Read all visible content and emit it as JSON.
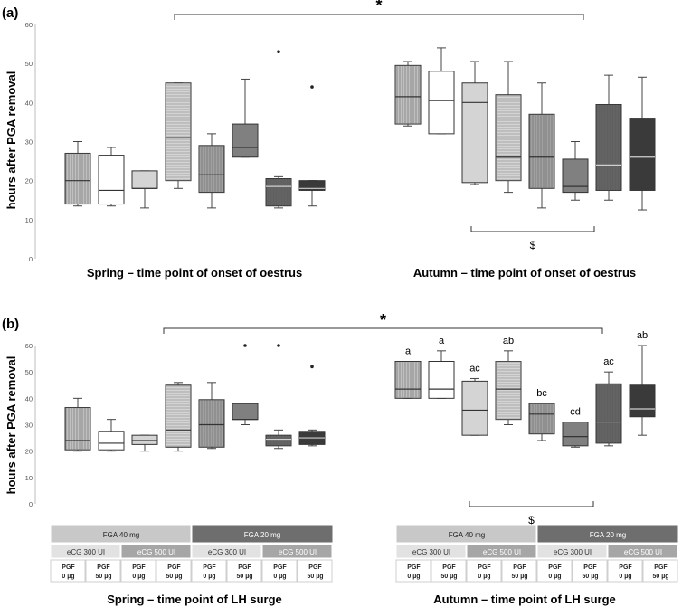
{
  "figure_colors": {
    "fga40": "#c8c8c8",
    "fga20": "#6e6e6e",
    "ecg_light": "#bfbfbf",
    "ecg_dark": "#8c8c8c",
    "box_dark": "#3a3a3a",
    "box_mid": "#808080",
    "box_light": "#c8c8c8",
    "box_white": "#ffffff"
  },
  "chart_data": [
    {
      "type": "boxplot",
      "panel_label": "(a)",
      "ylabel": "hours after PGA removal",
      "ylim": [
        0,
        60
      ],
      "yticks": [
        "0",
        "10",
        "20",
        "30",
        "40",
        "50",
        "60"
      ],
      "significance_marker": "*",
      "groups": [
        {
          "xlabel": "Spring – time point of onset of oestrus",
          "boxes": [
            {
              "min": 13.5,
              "q1": 14,
              "median": 20,
              "q3": 27,
              "max": 30,
              "fill": "#c0c0c0",
              "pattern": "v"
            },
            {
              "min": 13.5,
              "q1": 14,
              "median": 17.5,
              "q3": 26.5,
              "max": 28.5,
              "fill": "#ffffff",
              "pattern": ""
            },
            {
              "min": 13,
              "q1": 18,
              "median": 18,
              "q3": 22.5,
              "max": 22.5,
              "fill": "#d4d4d4",
              "pattern": ""
            },
            {
              "min": 18,
              "q1": 20,
              "median": 31,
              "q3": 45,
              "max": 45,
              "fill": "#d4d4d4",
              "pattern": "h"
            },
            {
              "min": 13,
              "q1": 17,
              "median": 21.5,
              "q3": 29,
              "max": 32,
              "fill": "#a0a0a0",
              "pattern": "v"
            },
            {
              "min": 26,
              "q1": 26,
              "median": 28.5,
              "q3": 34.5,
              "max": 46,
              "fill": "#808080",
              "pattern": ""
            },
            {
              "min": 13,
              "q1": 13.5,
              "median": 18.5,
              "q3": 20.5,
              "max": 21,
              "fill": "#606060",
              "pattern": "v",
              "outlier": 53
            },
            {
              "min": 13.5,
              "q1": 17.5,
              "median": 18,
              "q3": 20,
              "max": 20,
              "fill": "#3a3a3a",
              "pattern": "",
              "outlier": 44
            }
          ]
        },
        {
          "xlabel": "Autumn – time point of onset of oestrus",
          "bracket_label": "$",
          "boxes": [
            {
              "min": 34,
              "q1": 34.5,
              "median": 41.5,
              "q3": 49.5,
              "max": 50.5,
              "fill": "#c0c0c0",
              "pattern": "v"
            },
            {
              "min": 32,
              "q1": 32,
              "median": 40.5,
              "q3": 48,
              "max": 54,
              "fill": "#ffffff",
              "pattern": ""
            },
            {
              "min": 19,
              "q1": 19.5,
              "median": 40,
              "q3": 45,
              "max": 50.5,
              "fill": "#d4d4d4",
              "pattern": ""
            },
            {
              "min": 17,
              "q1": 20,
              "median": 26,
              "q3": 42,
              "max": 50.5,
              "fill": "#d4d4d4",
              "pattern": "h"
            },
            {
              "min": 13,
              "q1": 18,
              "median": 26,
              "q3": 37,
              "max": 45,
              "fill": "#a0a0a0",
              "pattern": "v"
            },
            {
              "min": 15,
              "q1": 17,
              "median": 18.5,
              "q3": 25.5,
              "max": 30,
              "fill": "#808080",
              "pattern": ""
            },
            {
              "min": 15,
              "q1": 17.5,
              "median": 24,
              "q3": 39.5,
              "max": 47,
              "fill": "#606060",
              "pattern": "v"
            },
            {
              "min": 12.5,
              "q1": 17.5,
              "median": 26,
              "q3": 36,
              "max": 46.5,
              "fill": "#3a3a3a",
              "pattern": ""
            }
          ]
        }
      ]
    },
    {
      "type": "boxplot",
      "panel_label": "(b)",
      "ylabel": "hours after PGA removal",
      "ylim": [
        0,
        60
      ],
      "yticks": [
        "0",
        "10",
        "20",
        "30",
        "40",
        "50",
        "60"
      ],
      "significance_marker": "*",
      "groups": [
        {
          "xlabel": "Spring – time point of LH surge",
          "boxes": [
            {
              "min": 20,
              "q1": 20.5,
              "median": 24,
              "q3": 36.5,
              "max": 40,
              "fill": "#c0c0c0",
              "pattern": "v"
            },
            {
              "min": 20,
              "q1": 20.5,
              "median": 23,
              "q3": 27.5,
              "max": 32,
              "fill": "#ffffff",
              "pattern": ""
            },
            {
              "min": 20,
              "q1": 22.5,
              "median": 24,
              "q3": 26,
              "max": 26,
              "fill": "#d4d4d4",
              "pattern": ""
            },
            {
              "min": 20,
              "q1": 21.5,
              "median": 28,
              "q3": 45,
              "max": 46,
              "fill": "#d4d4d4",
              "pattern": "h"
            },
            {
              "min": 21,
              "q1": 21.5,
              "median": 30,
              "q3": 39.5,
              "max": 46,
              "fill": "#a0a0a0",
              "pattern": "v"
            },
            {
              "min": 30,
              "q1": 32,
              "median": 32,
              "q3": 38,
              "max": 38,
              "fill": "#808080",
              "pattern": "",
              "outlier": 60
            },
            {
              "min": 21,
              "q1": 22,
              "median": 24.5,
              "q3": 26,
              "max": 28,
              "fill": "#606060",
              "pattern": "v",
              "outlier": 60
            },
            {
              "min": 22,
              "q1": 22.5,
              "median": 25,
              "q3": 27.5,
              "max": 28,
              "fill": "#3a3a3a",
              "pattern": "",
              "outlier": 52
            }
          ]
        },
        {
          "xlabel": "Autumn – time point of LH surge",
          "bracket_label": "$",
          "boxes": [
            {
              "min": 40,
              "q1": 40,
              "median": 43.5,
              "q3": 54,
              "max": 54,
              "fill": "#c0c0c0",
              "pattern": "v",
              "letter": "a"
            },
            {
              "min": 40,
              "q1": 40,
              "median": 43.5,
              "q3": 54,
              "max": 58,
              "fill": "#ffffff",
              "pattern": "",
              "letter": "a"
            },
            {
              "min": 26,
              "q1": 26,
              "median": 35.5,
              "q3": 46.5,
              "max": 47.5,
              "fill": "#d4d4d4",
              "pattern": "",
              "letter": "ac"
            },
            {
              "min": 30,
              "q1": 32,
              "median": 43.5,
              "q3": 54,
              "max": 58,
              "fill": "#d4d4d4",
              "pattern": "h",
              "letter": "ab"
            },
            {
              "min": 24,
              "q1": 26.5,
              "median": 34,
              "q3": 38,
              "max": 38,
              "fill": "#a0a0a0",
              "pattern": "v",
              "letter": "bc"
            },
            {
              "min": 21.5,
              "q1": 22,
              "median": 25.5,
              "q3": 31,
              "max": 31,
              "fill": "#808080",
              "pattern": "",
              "letter": "cd"
            },
            {
              "min": 22,
              "q1": 23,
              "median": 31,
              "q3": 45.5,
              "max": 50,
              "fill": "#606060",
              "pattern": "v",
              "letter": "ac"
            },
            {
              "min": 26,
              "q1": 33,
              "median": 36,
              "q3": 45,
              "max": 60,
              "fill": "#3a3a3a",
              "pattern": "",
              "letter": "ab"
            }
          ]
        }
      ]
    }
  ],
  "legend_table": {
    "fga": [
      "FGA 40 mg",
      "FGA 20 mg"
    ],
    "ecg": [
      "eCG 300 UI",
      "eCG 500 UI",
      "eCG 300 UI",
      "eCG 500 UI"
    ],
    "pgf": [
      {
        "line1": "PGF",
        "line2": "0 µg"
      },
      {
        "line1": "PGF",
        "line2": "50 µg"
      },
      {
        "line1": "PGF",
        "line2": "0 µg"
      },
      {
        "line1": "PGF",
        "line2": "50 µg"
      },
      {
        "line1": "PGF",
        "line2": "0 µg"
      },
      {
        "line1": "PGF",
        "line2": "50 µg"
      },
      {
        "line1": "PGF",
        "line2": "0 µg"
      },
      {
        "line1": "PGF",
        "line2": "50 µg"
      }
    ]
  }
}
